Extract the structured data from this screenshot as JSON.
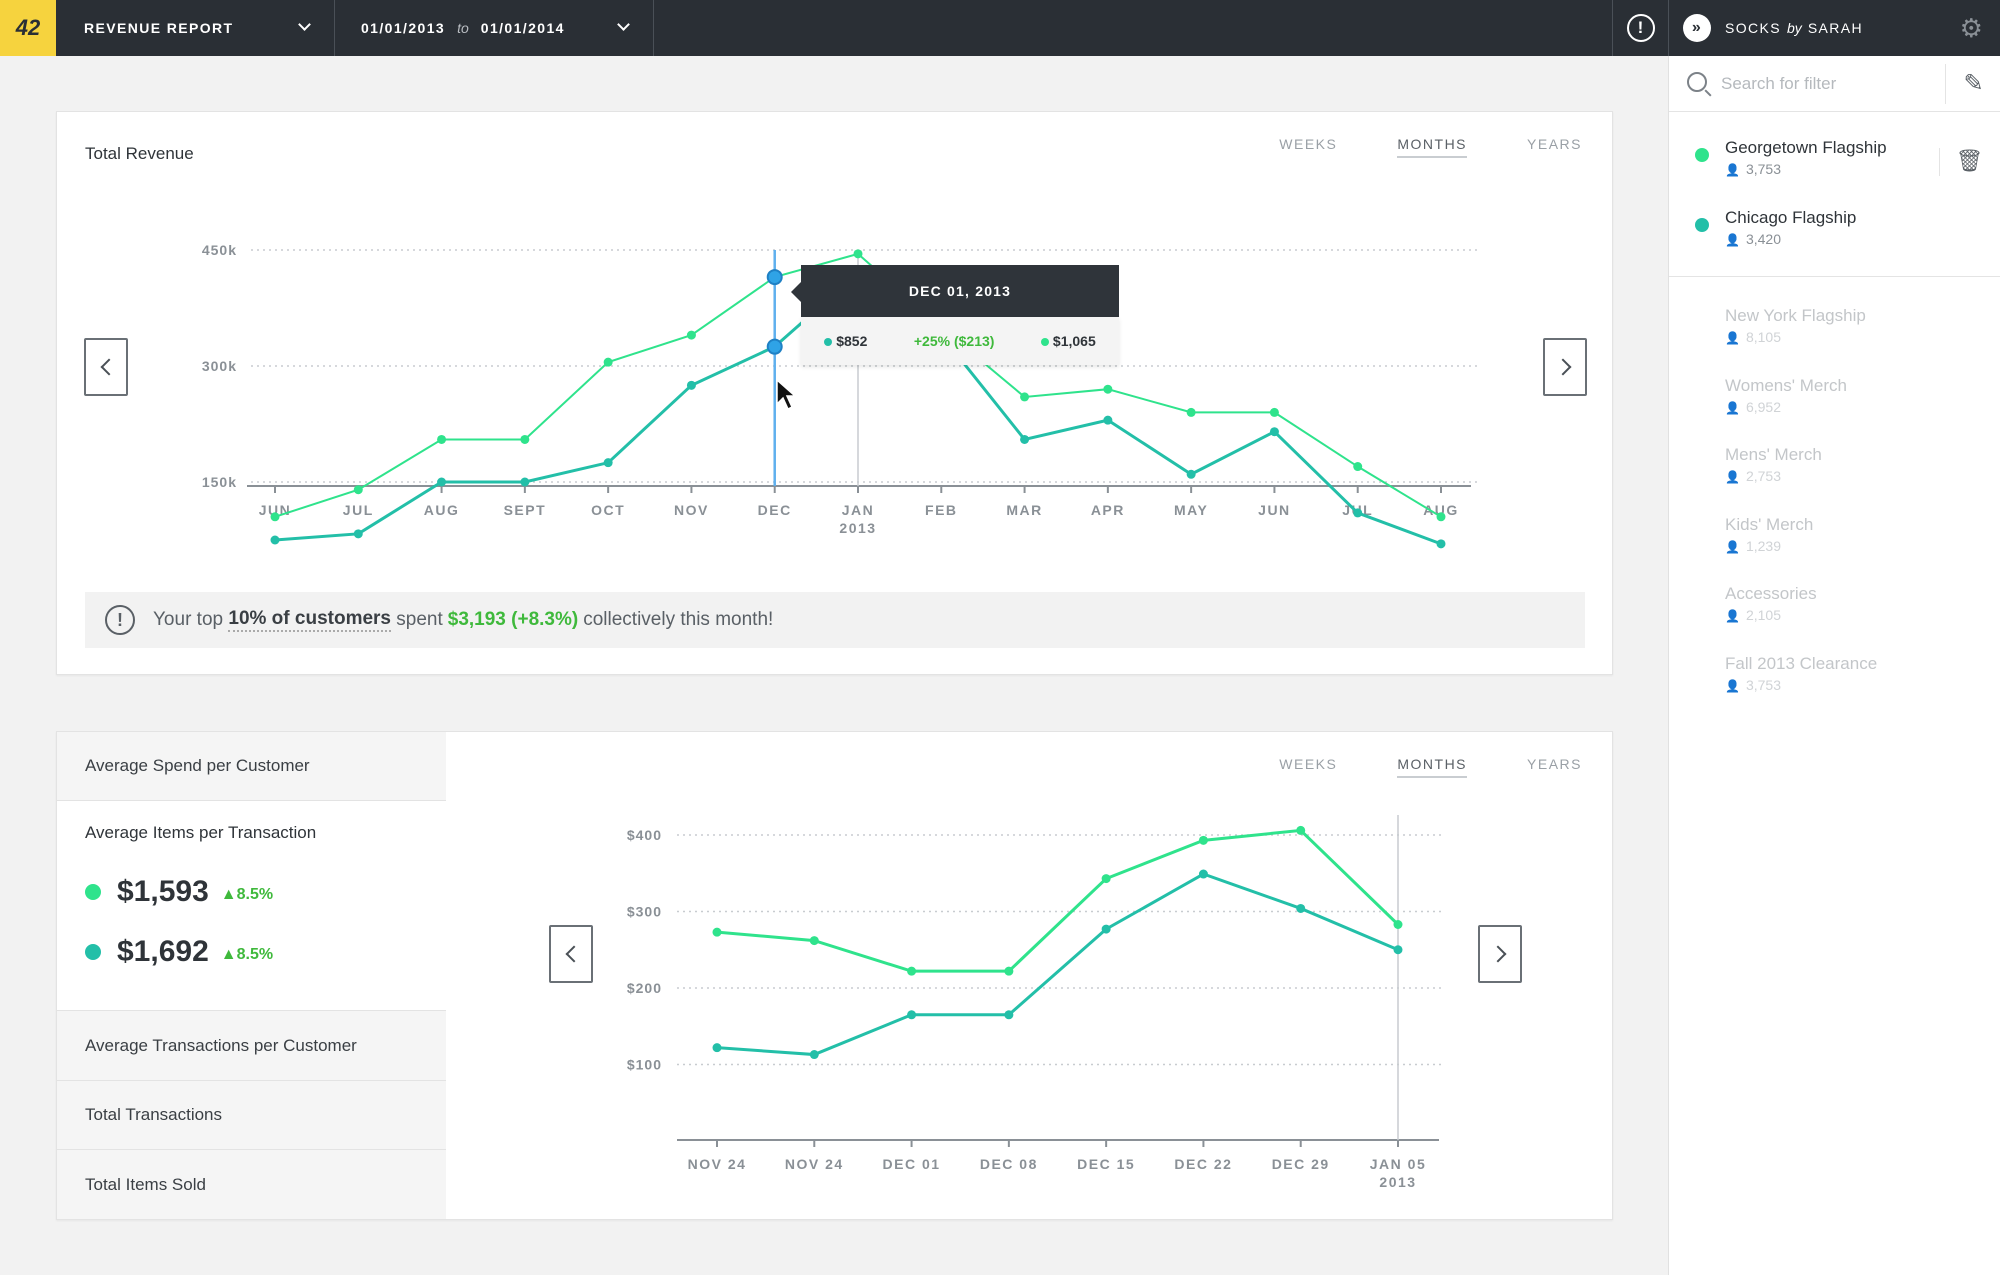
{
  "header": {
    "logo": "42",
    "report_label": "REVENUE REPORT",
    "date_from": "01/01/2013",
    "date_to_word": "to",
    "date_to": "01/01/2014",
    "brand_name": "SOCKS",
    "brand_by": "by",
    "brand_owner": "SARAH"
  },
  "sidebar": {
    "search_placeholder": "Search for filter",
    "active_stores": [
      {
        "name": "Georgetown Flagship",
        "count": "3,753",
        "color": "#2fe38c"
      },
      {
        "name": "Chicago Flagship",
        "count": "3,420",
        "color": "#23bfa8"
      }
    ],
    "inactive_stores": [
      {
        "name": "New York Flagship",
        "count": "8,105"
      },
      {
        "name": "Womens' Merch",
        "count": "6,952"
      },
      {
        "name": "Mens' Merch",
        "count": "2,753"
      },
      {
        "name": "Kids' Merch",
        "count": "1,239"
      },
      {
        "name": "Accessories",
        "count": "2,105"
      },
      {
        "name": "Fall 2013 Clearance",
        "count": "3,753"
      }
    ]
  },
  "revenue_card": {
    "title": "Total Revenue",
    "tabs": [
      "WEEKS",
      "MONTHS",
      "YEARS"
    ],
    "active_tab": "MONTHS",
    "tooltip": {
      "date": "DEC 01, 2013",
      "value_a": "$852",
      "diff": "+25% ($213)",
      "value_b": "$1,065"
    },
    "insight": {
      "prefix": "Your top",
      "highlight": "10% of customers",
      "middle": "spent",
      "money": "$3,193 (+8.3%)",
      "suffix": "collectively this month!"
    }
  },
  "metrics_card": {
    "tabs": [
      "WEEKS",
      "MONTHS",
      "YEARS"
    ],
    "active_tab": "MONTHS",
    "items": {
      "avg_spend": "Average Spend per Customer",
      "avg_items": "Average Items per Transaction",
      "avg_trans": "Average Transactions per Customer",
      "total_trans": "Total Transactions",
      "total_items": "Total Items Sold"
    },
    "values": [
      {
        "value": "$1,593",
        "delta": "8.5%",
        "color": "#2fe38c"
      },
      {
        "value": "$1,692",
        "delta": "8.5%",
        "color": "#23bfa8"
      }
    ]
  },
  "chart_data": [
    {
      "type": "line",
      "title": "Total Revenue",
      "categories": [
        "JUN",
        "JUL",
        "AUG",
        "SEPT",
        "OCT",
        "NOV",
        "DEC",
        "JAN",
        "FEB",
        "MAR",
        "APR",
        "MAY",
        "JUN",
        "JUL",
        "AUG"
      ],
      "category_sublabels": {
        "7": "2013"
      },
      "y_ticks": [
        "150k",
        "300k",
        "450k"
      ],
      "ylim": [
        0,
        450000
      ],
      "grid": true,
      "highlight_index": 6,
      "series": [
        {
          "color": "#2fe38c",
          "values": [
            105000,
            140000,
            205000,
            205000,
            305000,
            340000,
            415000,
            445000,
            350000,
            260000,
            270000,
            240000,
            240000,
            170000,
            105000
          ]
        },
        {
          "color": "#23bfa8",
          "values": [
            75000,
            83000,
            150000,
            150000,
            175000,
            275000,
            325000,
            420000,
            340000,
            205000,
            230000,
            160000,
            215000,
            110000,
            70000
          ]
        }
      ]
    },
    {
      "type": "line",
      "categories": [
        "NOV 24",
        "NOV 24",
        "DEC 01",
        "DEC 08",
        "DEC 15",
        "DEC 22",
        "DEC 29",
        "JAN 05"
      ],
      "category_sublabels": {
        "7": "2013"
      },
      "y_ticks": [
        "$100",
        "$200",
        "$300",
        "$400"
      ],
      "ylim": [
        0,
        400
      ],
      "grid": true,
      "highlight_index": 7,
      "series": [
        {
          "color": "#2fe38c",
          "values": [
            273,
            262,
            222,
            222,
            343,
            393,
            406,
            283
          ]
        },
        {
          "color": "#23bfa8",
          "values": [
            122,
            113,
            165,
            165,
            277,
            349,
            304,
            250
          ]
        }
      ]
    }
  ]
}
